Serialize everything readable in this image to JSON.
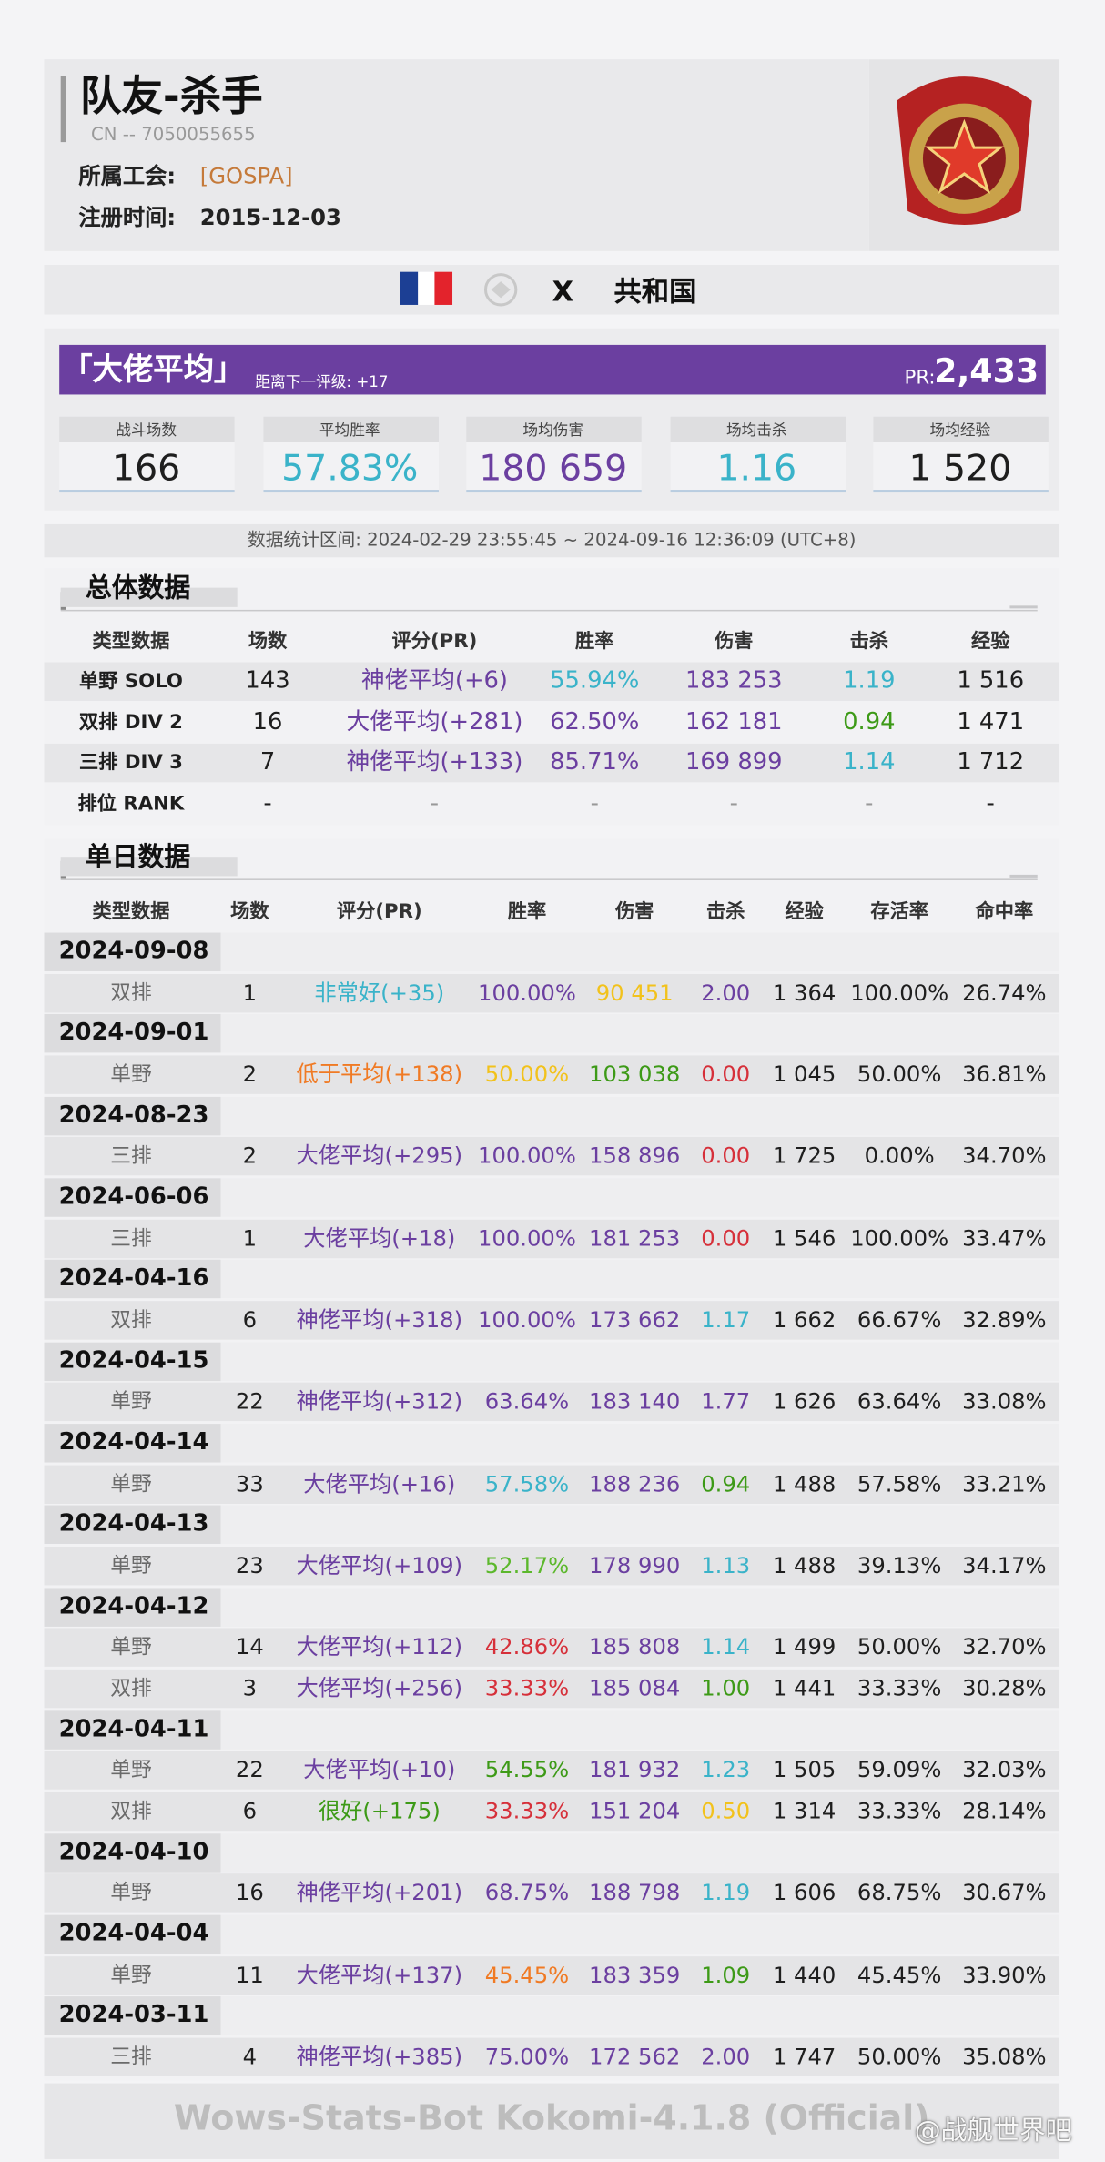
{
  "palette": {
    "black": "#1e1e1e",
    "gray": "#6a6a6a",
    "purple": "#6b3fa0",
    "cyan": "#3ab3c9",
    "green": "#3d9a17",
    "lime": "#5cb82c",
    "orange": "#f07a24",
    "yellow": "#f2c21c",
    "red": "#d6303a",
    "dash": "#999999"
  },
  "header": {
    "name": "队友-杀手",
    "id": "CN -- 7050055655",
    "clan_label": "所属工会:",
    "clan": "[GOSPA]",
    "reg_label": "注册时间:",
    "reg_date": "2015-12-03"
  },
  "server": {
    "tier": "X",
    "nation": "共和国"
  },
  "rating": {
    "level": "「大佬平均」",
    "next": "距离下一评级: +17",
    "pr_label": "PR:",
    "pr": "2,433"
  },
  "stats": [
    {
      "label": "战斗场数",
      "value": "166",
      "color": "black"
    },
    {
      "label": "平均胜率",
      "value": "57.83%",
      "color": "cyan"
    },
    {
      "label": "场均伤害",
      "value": "180 659",
      "color": "purple"
    },
    {
      "label": "场均击杀",
      "value": "1.16",
      "color": "cyan"
    },
    {
      "label": "场均经验",
      "value": "1 520",
      "color": "black"
    }
  ],
  "period": "数据统计区间: 2024-02-29 23:55:45 ~ 2024-09-16 12:36:09 (UTC+8)",
  "overall": {
    "title": "总体数据",
    "columns": [
      "类型数据",
      "场数",
      "评分(PR)",
      "胜率",
      "伤害",
      "击杀",
      "经验"
    ],
    "rows": [
      {
        "cells": [
          "单野 SOLO",
          "143",
          "神佬平均(+6)",
          "55.94%",
          "183 253",
          "1.19",
          "1 516"
        ],
        "colors": [
          "black",
          "black",
          "purple",
          "cyan",
          "purple",
          "cyan",
          "black"
        ]
      },
      {
        "cells": [
          "双排 DIV 2",
          "16",
          "大佬平均(+281)",
          "62.50%",
          "162 181",
          "0.94",
          "1 471"
        ],
        "colors": [
          "black",
          "black",
          "purple",
          "purple",
          "purple",
          "green",
          "black"
        ]
      },
      {
        "cells": [
          "三排 DIV 3",
          "7",
          "神佬平均(+133)",
          "85.71%",
          "169 899",
          "1.14",
          "1 712"
        ],
        "colors": [
          "black",
          "black",
          "purple",
          "purple",
          "purple",
          "cyan",
          "black"
        ]
      },
      {
        "cells": [
          "排位 RANK",
          "-",
          "-",
          "-",
          "-",
          "-",
          "-"
        ],
        "colors": [
          "black",
          "black",
          "dash",
          "dash",
          "dash",
          "dash",
          "black"
        ]
      }
    ]
  },
  "daily": {
    "title": "单日数据",
    "columns": [
      "类型数据",
      "场数",
      "评分(PR)",
      "胜率",
      "伤害",
      "击杀",
      "经验",
      "存活率",
      "命中率"
    ],
    "days": [
      {
        "date": "2024-09-08",
        "rows": [
          {
            "cells": [
              "双排",
              "1",
              "非常好(+35)",
              "100.00%",
              "90 451",
              "2.00",
              "1 364",
              "100.00%",
              "26.74%"
            ],
            "colors": [
              "gray",
              "black",
              "cyan",
              "purple",
              "yellow",
              "purple",
              "black",
              "black",
              "black"
            ]
          }
        ]
      },
      {
        "date": "2024-09-01",
        "rows": [
          {
            "cells": [
              "单野",
              "2",
              "低于平均(+138)",
              "50.00%",
              "103 038",
              "0.00",
              "1 045",
              "50.00%",
              "36.81%"
            ],
            "colors": [
              "gray",
              "black",
              "orange",
              "yellow",
              "green",
              "red",
              "black",
              "black",
              "black"
            ]
          }
        ]
      },
      {
        "date": "2024-08-23",
        "rows": [
          {
            "cells": [
              "三排",
              "2",
              "大佬平均(+295)",
              "100.00%",
              "158 896",
              "0.00",
              "1 725",
              "0.00%",
              "34.70%"
            ],
            "colors": [
              "gray",
              "black",
              "purple",
              "purple",
              "purple",
              "red",
              "black",
              "black",
              "black"
            ]
          }
        ]
      },
      {
        "date": "2024-06-06",
        "rows": [
          {
            "cells": [
              "三排",
              "1",
              "大佬平均(+18)",
              "100.00%",
              "181 253",
              "0.00",
              "1 546",
              "100.00%",
              "33.47%"
            ],
            "colors": [
              "gray",
              "black",
              "purple",
              "purple",
              "purple",
              "red",
              "black",
              "black",
              "black"
            ]
          }
        ]
      },
      {
        "date": "2024-04-16",
        "rows": [
          {
            "cells": [
              "双排",
              "6",
              "神佬平均(+318)",
              "100.00%",
              "173 662",
              "1.17",
              "1 662",
              "66.67%",
              "32.89%"
            ],
            "colors": [
              "gray",
              "black",
              "purple",
              "purple",
              "purple",
              "cyan",
              "black",
              "black",
              "black"
            ]
          }
        ]
      },
      {
        "date": "2024-04-15",
        "rows": [
          {
            "cells": [
              "单野",
              "22",
              "神佬平均(+312)",
              "63.64%",
              "183 140",
              "1.77",
              "1 626",
              "63.64%",
              "33.08%"
            ],
            "colors": [
              "gray",
              "black",
              "purple",
              "purple",
              "purple",
              "purple",
              "black",
              "black",
              "black"
            ]
          }
        ]
      },
      {
        "date": "2024-04-14",
        "rows": [
          {
            "cells": [
              "单野",
              "33",
              "大佬平均(+16)",
              "57.58%",
              "188 236",
              "0.94",
              "1 488",
              "57.58%",
              "33.21%"
            ],
            "colors": [
              "gray",
              "black",
              "purple",
              "cyan",
              "purple",
              "green",
              "black",
              "black",
              "black"
            ]
          }
        ]
      },
      {
        "date": "2024-04-13",
        "rows": [
          {
            "cells": [
              "单野",
              "23",
              "大佬平均(+109)",
              "52.17%",
              "178 990",
              "1.13",
              "1 488",
              "39.13%",
              "34.17%"
            ],
            "colors": [
              "gray",
              "black",
              "purple",
              "lime",
              "purple",
              "cyan",
              "black",
              "black",
              "black"
            ]
          }
        ]
      },
      {
        "date": "2024-04-12",
        "rows": [
          {
            "cells": [
              "单野",
              "14",
              "大佬平均(+112)",
              "42.86%",
              "185 808",
              "1.14",
              "1 499",
              "50.00%",
              "32.70%"
            ],
            "colors": [
              "gray",
              "black",
              "purple",
              "red",
              "purple",
              "cyan",
              "black",
              "black",
              "black"
            ]
          },
          {
            "cells": [
              "双排",
              "3",
              "大佬平均(+256)",
              "33.33%",
              "185 084",
              "1.00",
              "1 441",
              "33.33%",
              "30.28%"
            ],
            "colors": [
              "gray",
              "black",
              "purple",
              "red",
              "purple",
              "green",
              "black",
              "black",
              "black"
            ]
          }
        ]
      },
      {
        "date": "2024-04-11",
        "rows": [
          {
            "cells": [
              "单野",
              "22",
              "大佬平均(+10)",
              "54.55%",
              "181 932",
              "1.23",
              "1 505",
              "59.09%",
              "32.03%"
            ],
            "colors": [
              "gray",
              "black",
              "purple",
              "green",
              "purple",
              "cyan",
              "black",
              "black",
              "black"
            ]
          },
          {
            "cells": [
              "双排",
              "6",
              "很好(+175)",
              "33.33%",
              "151 204",
              "0.50",
              "1 314",
              "33.33%",
              "28.14%"
            ],
            "colors": [
              "gray",
              "black",
              "green",
              "red",
              "purple",
              "yellow",
              "black",
              "black",
              "black"
            ]
          }
        ]
      },
      {
        "date": "2024-04-10",
        "rows": [
          {
            "cells": [
              "单野",
              "16",
              "神佬平均(+201)",
              "68.75%",
              "188 798",
              "1.19",
              "1 606",
              "68.75%",
              "30.67%"
            ],
            "colors": [
              "gray",
              "black",
              "purple",
              "purple",
              "purple",
              "cyan",
              "black",
              "black",
              "black"
            ]
          }
        ]
      },
      {
        "date": "2024-04-04",
        "rows": [
          {
            "cells": [
              "单野",
              "11",
              "大佬平均(+137)",
              "45.45%",
              "183 359",
              "1.09",
              "1 440",
              "45.45%",
              "33.90%"
            ],
            "colors": [
              "gray",
              "black",
              "purple",
              "orange",
              "purple",
              "green",
              "black",
              "black",
              "black"
            ]
          }
        ]
      },
      {
        "date": "2024-03-11",
        "rows": [
          {
            "cells": [
              "三排",
              "4",
              "神佬平均(+385)",
              "75.00%",
              "172 562",
              "2.00",
              "1 747",
              "50.00%",
              "35.08%"
            ],
            "colors": [
              "gray",
              "black",
              "purple",
              "purple",
              "purple",
              "purple",
              "black",
              "black",
              "black"
            ]
          }
        ]
      }
    ]
  },
  "footer": "Wows-Stats-Bot Kokomi-4.1.8 (Official)",
  "watermark": "@战舰世界吧"
}
